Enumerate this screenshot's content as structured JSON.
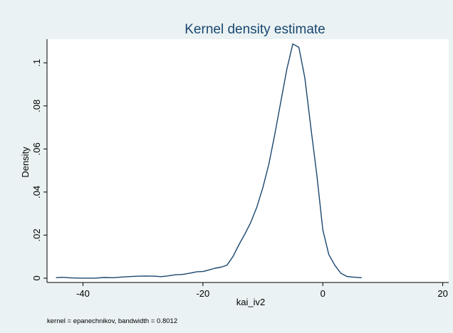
{
  "chart_data": {
    "type": "line",
    "title": "Kernel density estimate",
    "xlabel": "kai_iv2",
    "ylabel": "Density",
    "note": "kernel = epanechnikov, bandwidth = 0.8012",
    "xlim": [
      -46,
      21
    ],
    "ylim": [
      -0.002,
      0.111
    ],
    "xticks": [
      {
        "value": -40,
        "label": "-40"
      },
      {
        "value": -20,
        "label": "-20"
      },
      {
        "value": 0,
        "label": "0"
      },
      {
        "value": 20,
        "label": "20"
      }
    ],
    "yticks": [
      {
        "value": 0,
        "label": "0"
      },
      {
        "value": 0.02,
        "label": ".02"
      },
      {
        "value": 0.04,
        "label": ".04"
      },
      {
        "value": 0.06,
        "label": ".06"
      },
      {
        "value": 0.08,
        "label": ".08"
      },
      {
        "value": 0.1,
        "label": ".1"
      }
    ],
    "grid": false,
    "colors": {
      "background": "#eaf2f3",
      "plot_area": "#ffffff",
      "line": "#1a476f",
      "title": "#1a476f"
    },
    "series": [
      {
        "x": [
          -44.5,
          -43.5,
          -42,
          -40,
          -38,
          -36.5,
          -35,
          -33,
          -31,
          -29.5,
          -28,
          -27,
          -26,
          -24.5,
          -23.5,
          -22,
          -21,
          -20,
          -19,
          -18,
          -17,
          -16,
          -15,
          -14,
          -13,
          -12,
          -11,
          -10,
          -9,
          -8,
          -7,
          -6,
          -5,
          -4,
          -3,
          -2,
          -1,
          0,
          1,
          2,
          3,
          4,
          5,
          6.5
        ],
        "y": [
          0.0002,
          0.0004,
          0.0001,
          0.0,
          0.0,
          0.0003,
          0.0002,
          0.0006,
          0.0009,
          0.001,
          0.0009,
          0.0007,
          0.001,
          0.0016,
          0.0017,
          0.0024,
          0.003,
          0.0031,
          0.0038,
          0.0046,
          0.0051,
          0.006,
          0.01,
          0.0155,
          0.0205,
          0.026,
          0.033,
          0.042,
          0.053,
          0.067,
          0.082,
          0.097,
          0.1088,
          0.1072,
          0.093,
          0.07,
          0.048,
          0.0225,
          0.011,
          0.006,
          0.0023,
          0.0008,
          0.0005,
          0.0002
        ]
      }
    ]
  }
}
